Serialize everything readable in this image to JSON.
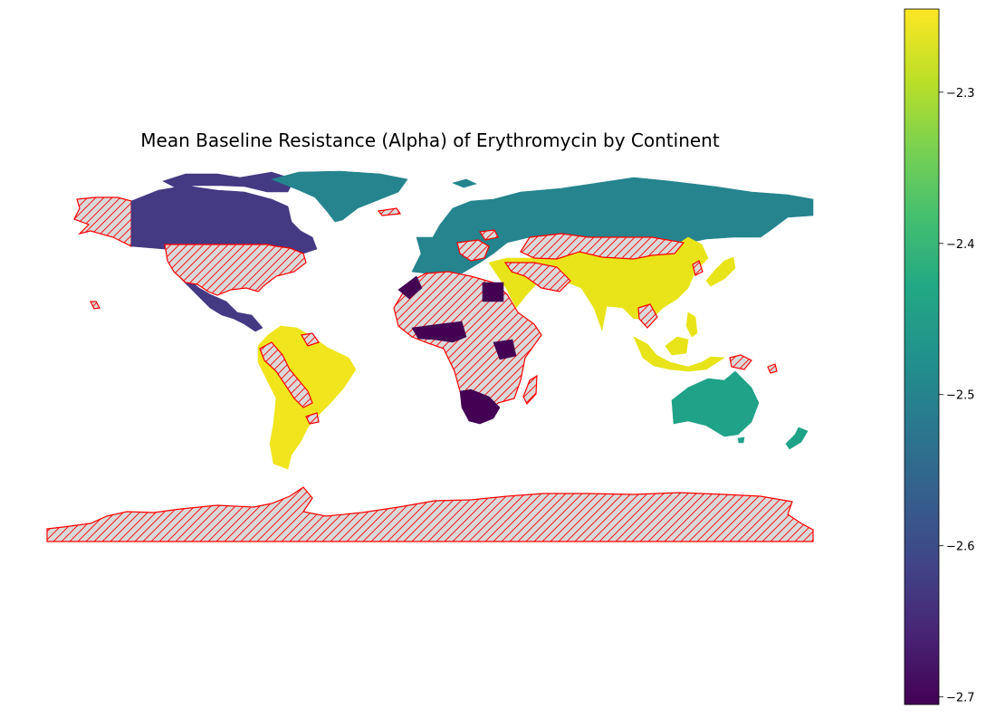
{
  "chart_data": {
    "type": "choropleth",
    "title": "Mean Baseline Resistance (Alpha) of Erythromycin by Continent",
    "colormap": "viridis",
    "colorbar": {
      "min": -2.705,
      "max": -2.245,
      "ticks": [
        {
          "value": -2.3,
          "label": "−2.3"
        },
        {
          "value": -2.4,
          "label": "−2.4"
        },
        {
          "value": -2.5,
          "label": "−2.5"
        },
        {
          "value": -2.6,
          "label": "−2.6"
        },
        {
          "value": -2.7,
          "label": "−2.7"
        }
      ]
    },
    "missing_style": {
      "fill": "#d9d9d9",
      "edge": "#ff0000",
      "hatch": "///"
    },
    "regions": [
      {
        "name": "North America",
        "value": -2.65,
        "color": "#443983"
      },
      {
        "name": "South America",
        "value": -2.25,
        "color": "#f1e51d"
      },
      {
        "name": "Asia",
        "value": -2.26,
        "color": "#e8e419"
      },
      {
        "name": "Europe",
        "value": -2.51,
        "color": "#25848e"
      },
      {
        "name": "Oceania",
        "value": -2.46,
        "color": "#1fa287"
      },
      {
        "name": "Africa",
        "value": -2.7,
        "color": "#440154"
      }
    ]
  }
}
